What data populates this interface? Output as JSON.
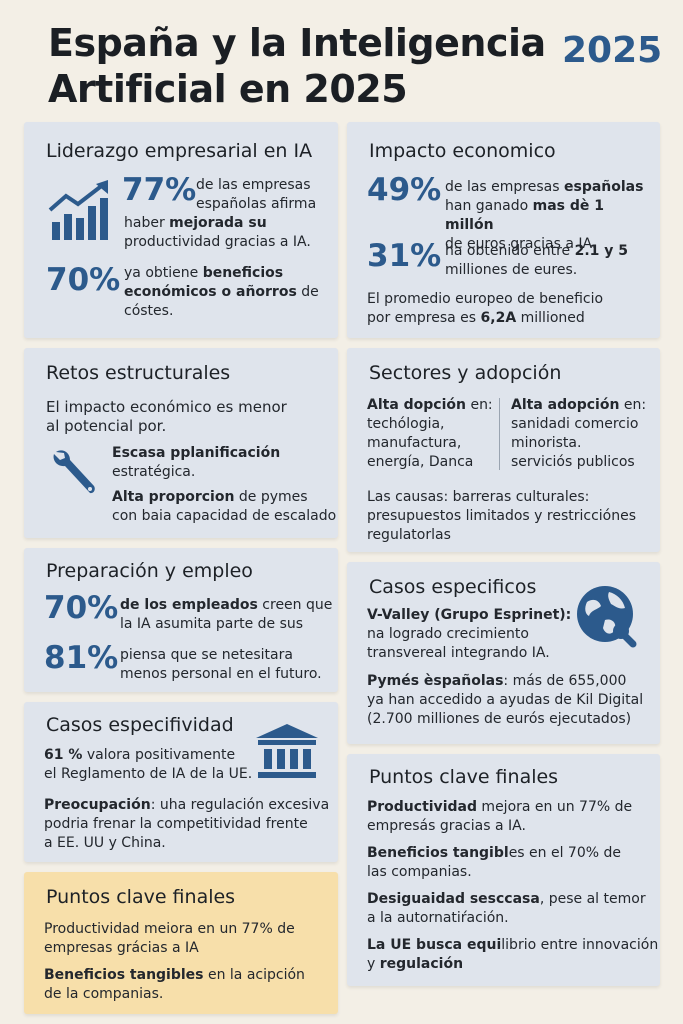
{
  "header": {
    "title_line1": "España y la Inteligencia",
    "title_line2": "Artificial en 2025",
    "year": "2025"
  },
  "colors": {
    "accent": "#2c5a8c",
    "card_bg": "#dfe4ec",
    "highlight_card_bg": "#f7dfaa",
    "page_bg": "#f3efe6"
  },
  "icons": {
    "chart": "bar-chart-icon",
    "wrench": "wrench-icon",
    "globe": "globe-icon",
    "institution": "institution-icon"
  },
  "liderazgo": {
    "title": "Liderazgo empresarial en IA",
    "stat1": "77%",
    "text1_a": "de las empresas",
    "text1_b": "españolas afirma",
    "text1_c_pre": "haber ",
    "text1_c_bold": "mejorada su",
    "text1_d": "productividad gracias a IA.",
    "stat2": "70%",
    "text2_a_pre": "ya obtiene ",
    "text2_a_bold": "beneficios",
    "text2_b_bold": "económicos o añorros",
    "text2_b_post": " de",
    "text2_c": "cóstes."
  },
  "impacto": {
    "title": "Impacto economico",
    "stat1": "49%",
    "text1_a_pre": "de las empresas ",
    "text1_a_bold": "españolas",
    "text1_b_pre": "han ganado ",
    "text1_b_bold": "mas dè 1 millón",
    "text1_c": "de euros gracias a IA.",
    "stat2": "31%",
    "text2_a_pre": "ha obtenido entre ",
    "text2_a_bold": "2.1 y 5",
    "text2_b": "milliones de eures.",
    "text3_a": "El promedio europeo de beneficio",
    "text3_b_pre": "por empresa es ",
    "text3_b_bold": "6,2A",
    "text3_b_post": " millioned"
  },
  "retos": {
    "title": "Retos estructurales",
    "text_a": "El impacto económico es menor",
    "text_b": "al potencial por.",
    "item1_a": "Escasa pplanificación",
    "item1_b": "estratégica.",
    "item2_bold": "Alta proporcion",
    "item2_post": " de pymes",
    "item2_b": "con baia capacidad de escalado"
  },
  "sectores": {
    "title": "Sectores y adopción",
    "col1_bold": "Alta dopción",
    "col1_post": " en:",
    "col1_l1": "techólogia,",
    "col1_l2": "manufactura,",
    "col1_l3": "energía, Danca",
    "col2_bold": "Alta adopción",
    "col2_post": " en:",
    "col2_l1": "sanidadi comercio",
    "col2_l2": "minorista.",
    "col2_l3": "serviciós publicos",
    "causas_a": "Las causas: barreras culturales:",
    "causas_b": "presupuestos limitados y restricciónes",
    "causas_c": "regulatorlas"
  },
  "preparacion": {
    "title": "Preparación y empleo",
    "stat1": "70%",
    "text1_a_bold": "de los empleados",
    "text1_a_post": " creen que",
    "text1_b": "la IA asumita parte de sus",
    "stat2": "81%",
    "text2_a": "piensa que se netesitara",
    "text2_b": "menos personal en el futuro."
  },
  "casos_esp": {
    "title": "Casos especificos",
    "p1_a": "V-Valley (Grupo Esprinet):",
    "p1_b": "na logrado crecimiento",
    "p1_c": "transvereal integrando IA.",
    "p2_a_bold": "Pymés èspañolas",
    "p2_a_post": ": más de 655,000",
    "p2_b": "ya han accedido a ayudas de Kil Digital",
    "p2_c": "(2.700 milliones de eurós ejecutados)"
  },
  "casos_especifividad": {
    "title": "Casos especifividad",
    "p1_bold": "61 %",
    "p1_post": " valora positivamente",
    "p1_b": "el Reglamento de IA de la UE.",
    "p2_bold": "Preocupación",
    "p2_post": ": uha regulación excesiva",
    "p2_b": "podria frenar la competitividad frente",
    "p2_c": "a EE. UU y China."
  },
  "puntos_left": {
    "title": "Puntos clave finales",
    "p1_a": "Productividad meiora en un 77% de",
    "p1_b": "empresas grácias a IA",
    "p2_bold": "Beneficios tangibles",
    "p2_post": " en la  acipción",
    "p2_b": "de la companias."
  },
  "puntos_right": {
    "title": "Puntos clave finales",
    "p1_bold": "Productividad",
    "p1_post": " mejora en un 77% de",
    "p1_b": "empresás gracias a IA.",
    "p2_bold": "Beneficios tangibl",
    "p2_post": "es en el 70% de",
    "p2_b": "las companias.",
    "p3_bold": "Desiguaidad sesccasa",
    "p3_post": ", pese al temor",
    "p3_b": "a la autornatiŕación.",
    "p4_bold": "La UE busca equi",
    "p4_post": "librio entre innovación",
    "p4_b_pre": "y ",
    "p4_b_bold": "regulación"
  }
}
